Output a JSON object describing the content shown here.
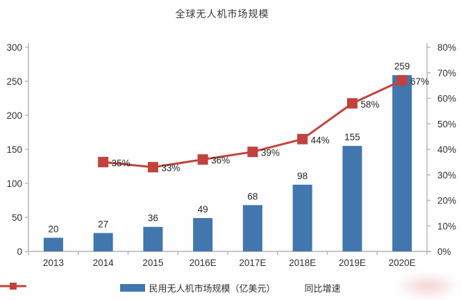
{
  "title": "全球无人机市场规模",
  "chart_data": {
    "type": "bar",
    "title": "全球无人机市场规模",
    "categories": [
      "2013",
      "2014",
      "2015",
      "2016E",
      "2017E",
      "2018E",
      "2019E",
      "2020E"
    ],
    "series": [
      {
        "name": "民用无人机市场规模（亿美元）",
        "kind": "bar",
        "axis": "left",
        "color": "#4276ae",
        "values": [
          20,
          27,
          36,
          49,
          68,
          98,
          155,
          259
        ],
        "value_labels": [
          "20",
          "27",
          "36",
          "49",
          "68",
          "98",
          "155",
          "259"
        ]
      },
      {
        "name": "同比增速",
        "kind": "line",
        "axis": "right",
        "color": "#c2423c",
        "values": [
          null,
          35,
          33,
          36,
          39,
          44,
          58,
          67
        ],
        "point_labels": [
          "",
          "35%",
          "33%",
          "36%",
          "39%",
          "44%",
          "58%",
          "67%"
        ]
      }
    ],
    "left_axis": {
      "min": 0,
      "max": 300,
      "step": 50,
      "tick_labels": [
        "0",
        "50",
        "100",
        "150",
        "200",
        "250",
        "300"
      ]
    },
    "right_axis": {
      "min": 0,
      "max": 80,
      "step": 10,
      "tick_labels": [
        "0%",
        "10%",
        "20%",
        "30%",
        "40%",
        "50%",
        "60%",
        "70%",
        "80%"
      ]
    },
    "legend_position": "bottom",
    "grid": false
  },
  "colors": {
    "bar": "#4276ae",
    "line": "#c2423c",
    "axis": "#b3b3b3",
    "text": "#303030",
    "label": "#262626"
  }
}
